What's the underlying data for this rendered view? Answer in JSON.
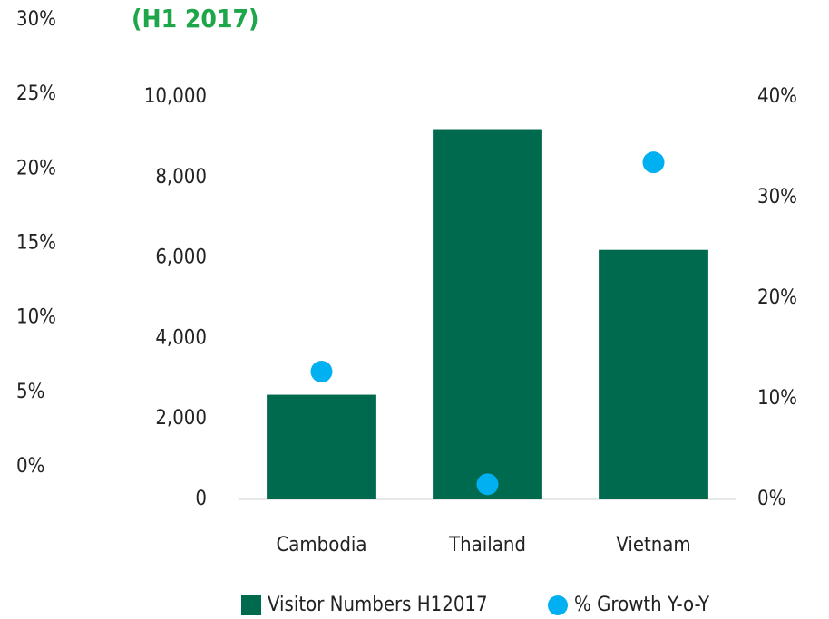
{
  "chart_data": {
    "type": "bar",
    "title": "(H1 2017)",
    "categories": [
      "Cambodia",
      "Thailand",
      "Vietnam"
    ],
    "series": [
      {
        "name": "Visitor Numbers H12017",
        "color": "#006a4e",
        "type": "bar",
        "values": [
          2600,
          9200,
          6200
        ]
      },
      {
        "name": "% Growth Y-o-Y",
        "color": "#00b0f0",
        "type": "scatter",
        "axis": "y2",
        "values": [
          12.7,
          1.5,
          33.5
        ]
      }
    ],
    "ylim": [
      0,
      10000
    ],
    "yticks": [
      0,
      {
        "value": 2000,
        "label": "2,000"
      },
      {
        "value": 4000,
        "label": "4,000"
      },
      {
        "value": 6000,
        "label": "6,000"
      },
      {
        "value": 8000,
        "label": "8,000"
      },
      {
        "value": 10000,
        "label": "10,000"
      }
    ],
    "y2lim": [
      0,
      40
    ],
    "y2ticks": [
      {
        "value": 0,
        "label": "0%"
      },
      {
        "value": 10,
        "label": "10%"
      },
      {
        "value": 20,
        "label": "20%"
      },
      {
        "value": 30,
        "label": "30%"
      },
      {
        "value": 40,
        "label": "40%"
      }
    ],
    "y3lim": [
      0,
      30
    ],
    "y3ticks": [
      {
        "value": 0,
        "label": "0%"
      },
      {
        "value": 5,
        "label": "5%"
      },
      {
        "value": 10,
        "label": "10%"
      },
      {
        "value": 15,
        "label": "15%"
      },
      {
        "value": 20,
        "label": "20%"
      },
      {
        "value": 25,
        "label": "25%"
      },
      {
        "value": 30,
        "label": "30%"
      }
    ],
    "legend": "bottom"
  }
}
